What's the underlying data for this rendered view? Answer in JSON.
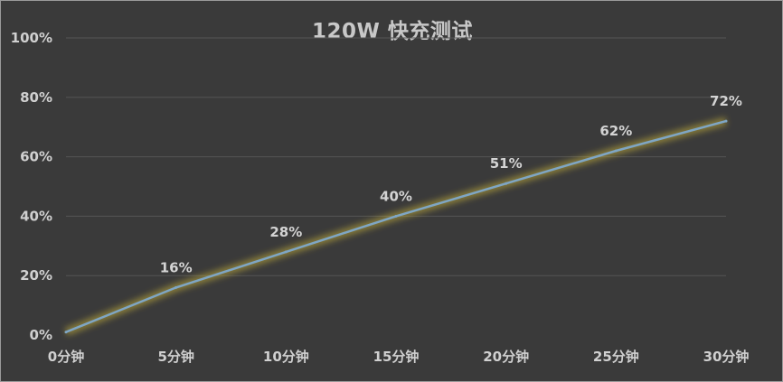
{
  "chart_data": {
    "type": "line",
    "title": "120W 快充测试",
    "xlabel": "",
    "ylabel": "",
    "categories": [
      "0分钟",
      "5分钟",
      "10分钟",
      "15分钟",
      "20分钟",
      "25分钟",
      "30分钟"
    ],
    "series": [
      {
        "values": [
          1,
          16,
          28,
          40,
          51,
          62,
          72
        ],
        "labels": [
          "",
          "16%",
          "28%",
          "40%",
          "51%",
          "62%",
          "72%"
        ],
        "color": "#7fa6c4",
        "glow_color": "#c9b23a"
      }
    ],
    "y_ticks": [
      "0%",
      "20%",
      "40%",
      "60%",
      "80%",
      "100%"
    ],
    "ylim": [
      0,
      100
    ],
    "grid": true,
    "legend": "none",
    "background": "#3a3a3a",
    "gridline_color": "#555555"
  }
}
